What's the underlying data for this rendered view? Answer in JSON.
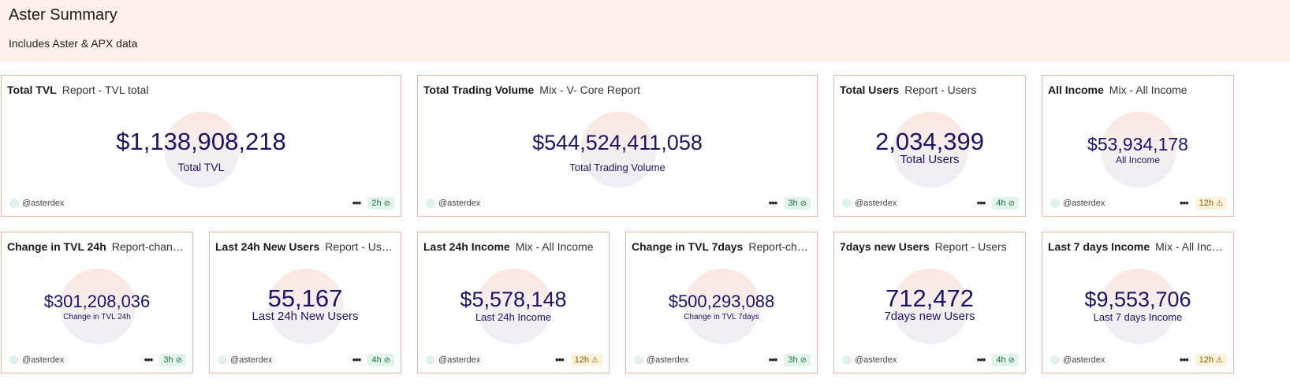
{
  "header": {
    "title": "Aster Summary",
    "subtitle": "Includes Aster & APX data"
  },
  "cards": [
    {
      "name": "Total TVL",
      "query": "Report - TVL total",
      "value": "$1,138,908,218",
      "label": "Total TVL",
      "user": "@asterdex",
      "age": "2h",
      "status": "ok"
    },
    {
      "name": "Total Trading Volume",
      "query": "Mix - V- Core Report",
      "value": "$544,524,411,058",
      "label": "Total Trading Volume",
      "user": "@asterdex",
      "age": "3h",
      "status": "ok"
    },
    {
      "name": "Total Users",
      "query": "Report - Users",
      "value": "2,034,399",
      "label": "Total Users",
      "user": "@asterdex",
      "age": "4h",
      "status": "ok"
    },
    {
      "name": "All Income",
      "query": "Mix - All Income",
      "value": "$53,934,178",
      "label": "All Income",
      "user": "@asterdex",
      "age": "12h",
      "status": "warn"
    },
    {
      "name": "Change in TVL 24h",
      "query": "Report-change…",
      "value": "$301,208,036",
      "label": "Change in TVL 24h",
      "user": "@asterdex",
      "age": "3h",
      "status": "ok"
    },
    {
      "name": "Last 24h New Users",
      "query": "Report - Users",
      "value": "55,167",
      "label": "Last 24h New Users",
      "user": "@asterdex",
      "age": "4h",
      "status": "ok"
    },
    {
      "name": "Last 24h Income",
      "query": "Mix - All Income",
      "value": "$5,578,148",
      "label": "Last 24h Income",
      "user": "@asterdex",
      "age": "12h",
      "status": "warn"
    },
    {
      "name": "Change in TVL 7days",
      "query": "Report-chan…",
      "value": "$500,293,088",
      "label": "Change in TVL 7days",
      "user": "@asterdex",
      "age": "3h",
      "status": "ok"
    },
    {
      "name": "7days new Users",
      "query": "Report - Users",
      "value": "712,472",
      "label": "7days new Users",
      "user": "@asterdex",
      "age": "4h",
      "status": "ok"
    },
    {
      "name": "Last 7 days Income",
      "query": "Mix - All Incom…",
      "value": "$9,553,706",
      "label": "Last 7 days Income",
      "user": "@asterdex",
      "age": "12h",
      "status": "warn"
    }
  ]
}
